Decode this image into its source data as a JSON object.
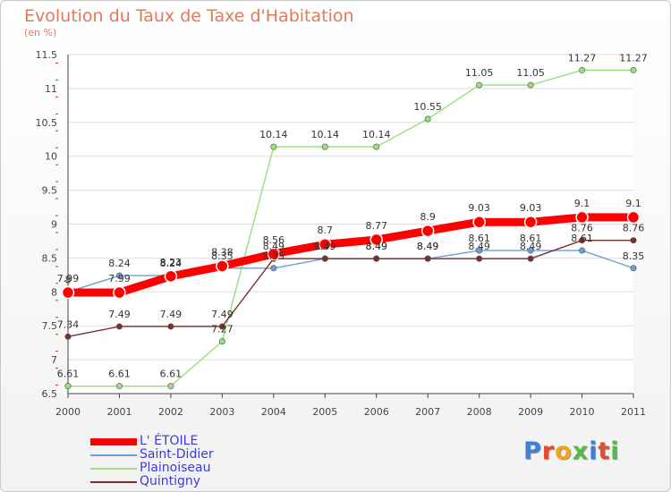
{
  "header": {
    "title": "Evolution du Taux de Taxe d'Habitation",
    "subtitle": "(en %)"
  },
  "logo": {
    "text": "Proxiti",
    "letter_colors": [
      "#3f7fd8",
      "#e8492f",
      "#f0a51c",
      "#59b84a",
      "#3f7fd8",
      "#e8492f",
      "#59b84a"
    ]
  },
  "chart_data": {
    "type": "line",
    "x": [
      2000,
      2001,
      2002,
      2003,
      2004,
      2005,
      2006,
      2007,
      2008,
      2009,
      2010,
      2011
    ],
    "ylim": [
      6.5,
      11.5
    ],
    "yticks": [
      6.5,
      7,
      7.5,
      8,
      8.5,
      9,
      9.5,
      10,
      10.5,
      11,
      11.5
    ],
    "ytick_labels": [
      "6.5",
      "7",
      "7.5",
      "8",
      "8.5",
      "9",
      "9.5",
      "10",
      "10.5",
      "11",
      "11.5"
    ],
    "grid": "horizontal",
    "legend_position": "bottom-left",
    "series": [
      {
        "name": "L' ÉTOILE",
        "color": "#ff0000",
        "values": [
          7.99,
          7.99,
          8.23,
          8.38,
          8.56,
          8.7,
          8.77,
          8.9,
          9.03,
          9.03,
          9.1,
          9.1
        ],
        "labels": [
          "7.99",
          "7.99",
          "8.23",
          "8.38",
          "8.56",
          "8.7",
          "8.77",
          "8.9",
          "9.03",
          "9.03",
          "9.1",
          "9.1"
        ]
      },
      {
        "name": "Saint-Didier",
        "color": "#6a9fd8",
        "values": [
          8.0,
          8.24,
          8.24,
          8.35,
          8.35,
          8.49,
          8.49,
          8.49,
          8.61,
          8.61,
          8.61,
          8.35
        ],
        "labels": [
          "8",
          "8.24",
          "8.24",
          "8.35",
          "8.35",
          "8.49",
          "8.49",
          "8.49",
          "8.61",
          "8.61",
          "8.61",
          "8.35"
        ]
      },
      {
        "name": "Plainoiseau",
        "color": "#99e07a",
        "values": [
          6.61,
          6.61,
          6.61,
          7.27,
          10.14,
          10.14,
          10.14,
          10.55,
          11.05,
          11.05,
          11.27,
          11.27
        ],
        "labels": [
          "6.61",
          "6.61",
          "6.61",
          "7.27",
          "10.14",
          "10.14",
          "10.14",
          "10.55",
          "11.05",
          "11.05",
          "11.27",
          "11.27"
        ]
      },
      {
        "name": "Quintigny",
        "color": "#7a3030",
        "values": [
          7.34,
          7.49,
          7.49,
          7.49,
          8.49,
          8.49,
          8.49,
          8.49,
          8.49,
          8.49,
          8.76,
          8.76
        ],
        "labels": [
          "7.34",
          "7.49",
          "7.49",
          "7.49",
          "8.49",
          "8.49",
          "8.49",
          "8.49",
          "8.49",
          "8.49",
          "8.76",
          "8.76"
        ]
      }
    ]
  }
}
